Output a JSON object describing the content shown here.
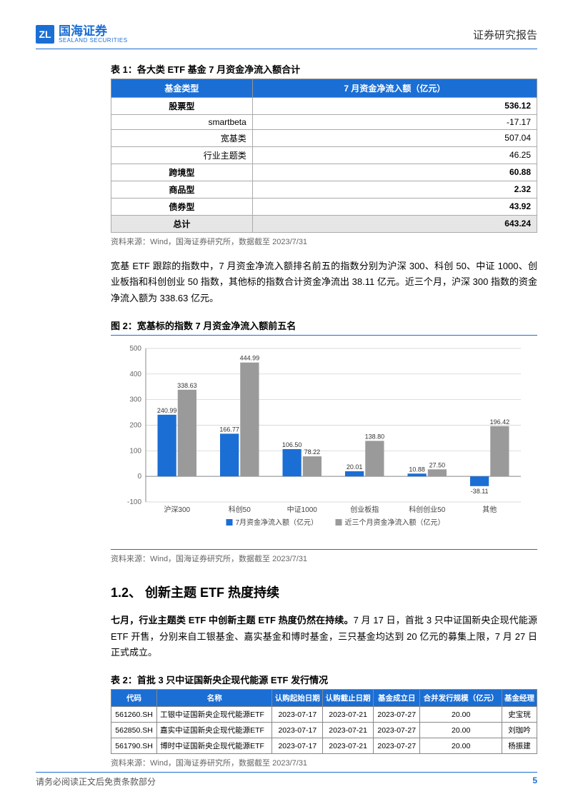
{
  "header": {
    "brand_cn": "国海证券",
    "brand_en": "SEALAND SECURITIES",
    "report_type": "证券研究报告"
  },
  "table1": {
    "caption_prefix": "表 1：",
    "caption": "各大类 ETF 基金 7 月资金净流入额合计",
    "col1": "基金类型",
    "col2": "7 月资金净流入额（亿元）",
    "rows": [
      {
        "type": "股票型",
        "val": "536.12",
        "bold": true
      },
      {
        "type": "smartbeta",
        "val": "-17.17",
        "indent": true
      },
      {
        "type": "宽基类",
        "val": "507.04",
        "indent": true
      },
      {
        "type": "行业主题类",
        "val": "46.25",
        "indent": true
      },
      {
        "type": "跨境型",
        "val": "60.88",
        "bold": true
      },
      {
        "type": "商品型",
        "val": "2.32",
        "bold": true
      },
      {
        "type": "债券型",
        "val": "43.92",
        "bold": true
      }
    ],
    "total_label": "总计",
    "total_val": "643.24",
    "source": "资料来源：Wind，国海证券研究所，数据截至 2023/7/31"
  },
  "para1": "宽基 ETF 跟踪的指数中，7 月资金净流入额排名前五的指数分别为沪深 300、科创 50、中证 1000、创业板指和科创创业 50 指数，其他标的指数合计资金净流出 38.11 亿元。近三个月，沪深 300 指数的资金净流入额为 338.63 亿元。",
  "chart": {
    "caption_prefix": "图 2：",
    "caption": "宽基标的指数 7 月资金净流入额前五名",
    "type": "bar",
    "categories": [
      "沪深300",
      "科创50",
      "中证1000",
      "创业板指",
      "科创创业50",
      "其他"
    ],
    "series": [
      {
        "name": "7月资金净流入额（亿元）",
        "color": "#1b6ed4",
        "values": [
          240.99,
          166.77,
          106.5,
          20.01,
          10.88,
          -38.11
        ]
      },
      {
        "name": "近三个月资金净流入额（亿元）",
        "color": "#9a9a9a",
        "values": [
          338.63,
          444.99,
          78.22,
          138.8,
          27.5,
          196.42
        ]
      }
    ],
    "y_min": -100,
    "y_max": 500,
    "y_step": 100,
    "label_fontsize": 9,
    "axis_fontsize": 10,
    "legend_fontsize": 10,
    "grid_color": "#cccccc",
    "axis_color": "#888888",
    "background": "#ffffff",
    "source": "资料来源：Wind，国海证券研究所，数据截至 2023/7/31"
  },
  "section12": {
    "heading": "1.2、 创新主题 ETF 热度持续",
    "para_bold": "七月，行业主题类 ETF 中创新主题 ETF 热度仍然在持续。",
    "para_rest": "7 月 17 日，首批 3 只中证国新央企现代能源 ETF 开售，分别来自工银基金、嘉实基金和博时基金，三只基金均达到 20 亿元的募集上限，7 月 27 日正式成立。"
  },
  "table2": {
    "caption_prefix": "表 2：",
    "caption": "首批 3 只中证国新央企现代能源 ETF 发行情况",
    "headers": [
      "代码",
      "名称",
      "认购起始日期",
      "认购截止日期",
      "基金成立日",
      "合并发行规模（亿元）",
      "基金经理"
    ],
    "rows": [
      [
        "561260.SH",
        "工银中证国新央企现代能源ETF",
        "2023-07-17",
        "2023-07-21",
        "2023-07-27",
        "20.00",
        "史宝珖"
      ],
      [
        "562850.SH",
        "嘉实中证国新央企现代能源ETF",
        "2023-07-17",
        "2023-07-21",
        "2023-07-27",
        "20.00",
        "刘珈吟"
      ],
      [
        "561790.SH",
        "博时中证国新央企现代能源ETF",
        "2023-07-17",
        "2023-07-21",
        "2023-07-27",
        "20.00",
        "杨振建"
      ]
    ],
    "source": "资料来源：Wind，国海证券研究所，数据截至 2023/7/31"
  },
  "footer": {
    "left": "请务必阅读正文后免责条款部分",
    "page": "5"
  }
}
